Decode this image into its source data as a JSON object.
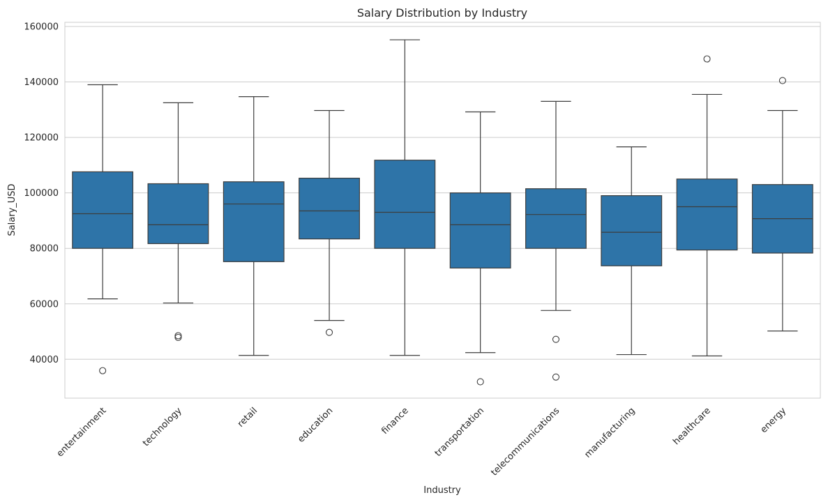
{
  "chart_data": {
    "type": "boxplot",
    "title": "Salary Distribution by Industry",
    "xlabel": "Industry",
    "ylabel": "Salary_USD",
    "ylim": [
      26000,
      161500
    ],
    "yticks": [
      40000,
      60000,
      80000,
      100000,
      120000,
      140000,
      160000
    ],
    "ytick_labels": [
      "40000",
      "60000",
      "80000",
      "100000",
      "120000",
      "140000",
      "160000"
    ],
    "grid": true,
    "box_color": "#2e74a8",
    "line_color": "#3d3d3d",
    "categories": [
      "entertainment",
      "technology",
      "retail",
      "education",
      "finance",
      "transportation",
      "telecommunications",
      "manufacturing",
      "healthcare",
      "energy"
    ],
    "boxes": [
      {
        "category": "entertainment",
        "whisker_low": 61800,
        "q1": 80000,
        "median": 92500,
        "q3": 107600,
        "whisker_high": 139000,
        "outliers": [
          35900
        ]
      },
      {
        "category": "technology",
        "whisker_low": 60300,
        "q1": 81700,
        "median": 88500,
        "q3": 103300,
        "whisker_high": 132500,
        "outliers": [
          47900,
          48500
        ]
      },
      {
        "category": "retail",
        "whisker_low": 41400,
        "q1": 75200,
        "median": 96000,
        "q3": 104000,
        "whisker_high": 134700,
        "outliers": []
      },
      {
        "category": "education",
        "whisker_low": 54000,
        "q1": 83400,
        "median": 93500,
        "q3": 105300,
        "whisker_high": 129700,
        "outliers": [
          49700
        ]
      },
      {
        "category": "finance",
        "whisker_low": 41400,
        "q1": 80000,
        "median": 93000,
        "q3": 111800,
        "whisker_high": 155200,
        "outliers": []
      },
      {
        "category": "transportation",
        "whisker_low": 42400,
        "q1": 72900,
        "median": 88500,
        "q3": 100000,
        "whisker_high": 129200,
        "outliers": [
          31900
        ]
      },
      {
        "category": "telecommunications",
        "whisker_low": 57600,
        "q1": 80000,
        "median": 92200,
        "q3": 101500,
        "whisker_high": 133000,
        "outliers": [
          47200,
          33600
        ]
      },
      {
        "category": "manufacturing",
        "whisker_low": 41700,
        "q1": 73700,
        "median": 85800,
        "q3": 99000,
        "whisker_high": 116600,
        "outliers": []
      },
      {
        "category": "healthcare",
        "whisker_low": 41200,
        "q1": 79400,
        "median": 95000,
        "q3": 105000,
        "whisker_high": 135500,
        "outliers": [
          148300
        ]
      },
      {
        "category": "energy",
        "whisker_low": 50200,
        "q1": 78300,
        "median": 90700,
        "q3": 103000,
        "whisker_high": 129700,
        "outliers": [
          140500
        ]
      }
    ]
  }
}
